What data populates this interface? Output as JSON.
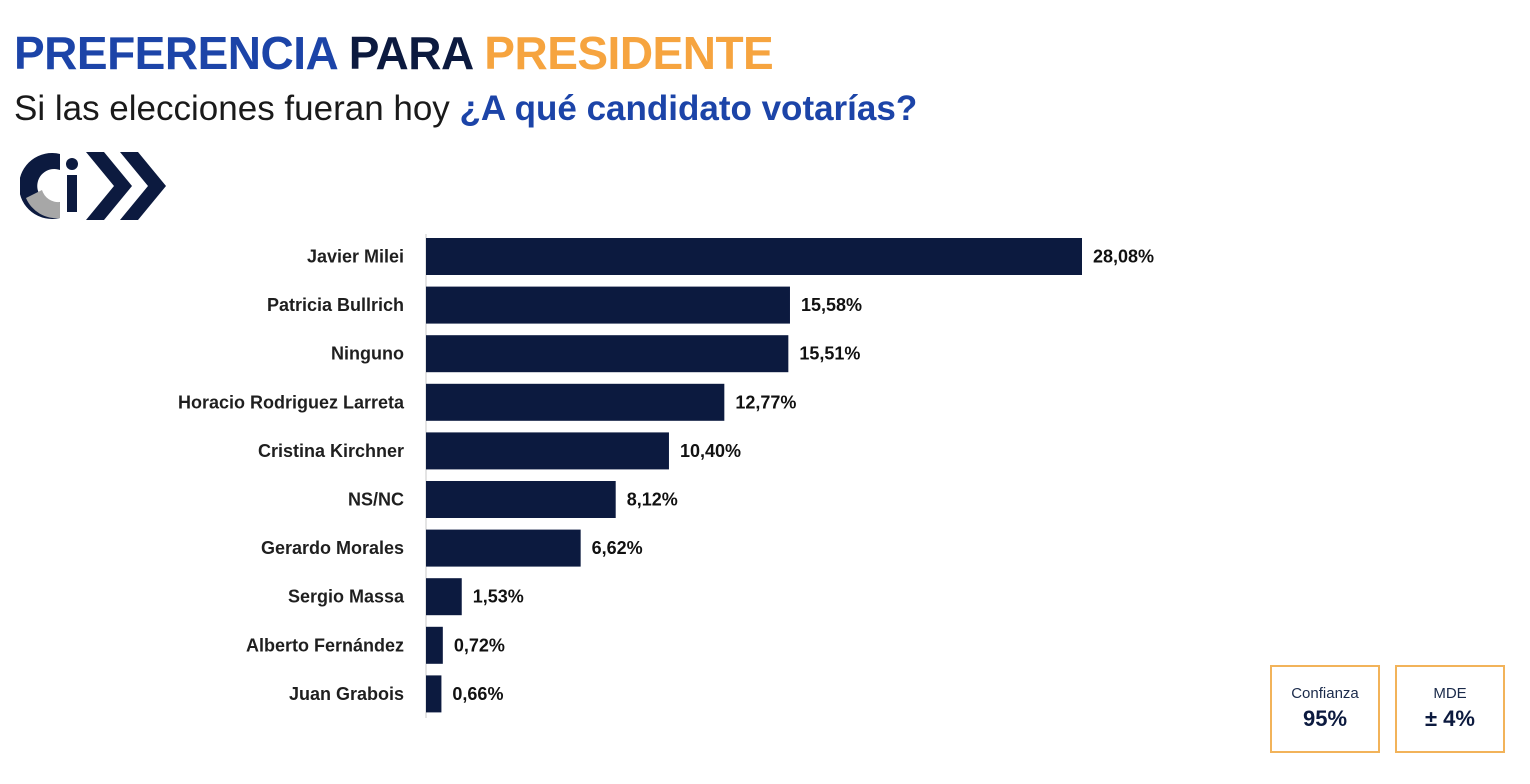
{
  "header": {
    "title_part1": "PREFERENCIA",
    "title_part2": "PARA",
    "title_part3": "PRESIDENTE",
    "subtitle_prefix": "Si las elecciones fueran hoy",
    "subtitle_question": "¿A qué candidato votarías?"
  },
  "colors": {
    "blue": "#1c44a8",
    "navy": "#0c1a3f",
    "orange": "#f6a43f",
    "bar": "#0c1a3f",
    "logo_gray": "#a7a7a7",
    "box_border": "#f2b35a"
  },
  "logo": {
    "icon": "ci-chevron-logo",
    "text": "Ci"
  },
  "chart_data": {
    "type": "bar",
    "orientation": "horizontal",
    "categories": [
      "Javier Milei",
      "Patricia Bullrich",
      "Ninguno",
      "Horacio Rodriguez Larreta",
      "Cristina Kirchner",
      "NS/NC",
      "Gerardo Morales",
      "Sergio Massa",
      "Alberto Fernández",
      "Juan Grabois"
    ],
    "values": [
      28.08,
      15.58,
      15.51,
      12.77,
      10.4,
      8.12,
      6.62,
      1.53,
      0.72,
      0.66
    ],
    "value_labels": [
      "28,08%",
      "15,58%",
      "15,51%",
      "12,77%",
      "10,40%",
      "8,12%",
      "6,62%",
      "1,53%",
      "0,72%",
      "0,66%"
    ],
    "xlim": [
      0,
      28.08
    ],
    "grid": false,
    "legend": "none"
  },
  "info_boxes": [
    {
      "label": "Confianza",
      "value": "95%"
    },
    {
      "label": "MDE",
      "value": "± 4%"
    }
  ]
}
